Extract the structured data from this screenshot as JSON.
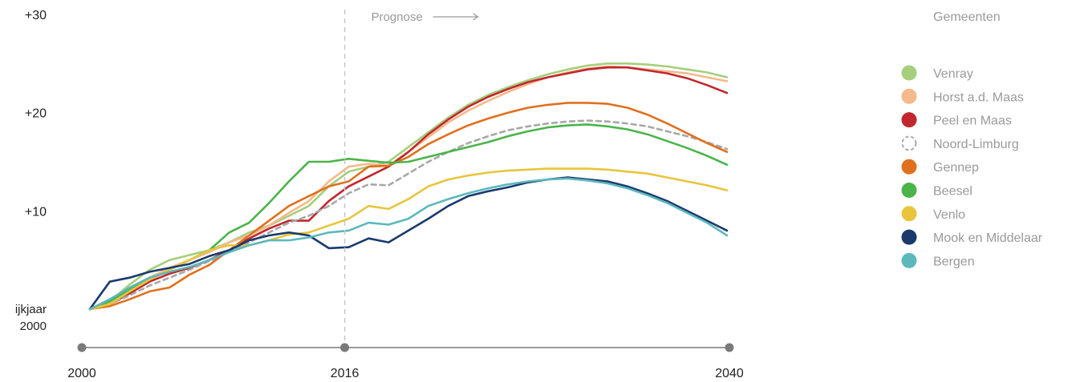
{
  "chart_data": {
    "type": "line",
    "x_start": 2000,
    "x_end": 2040,
    "ylim": [
      0,
      30
    ],
    "y_ticks": [
      {
        "value": 30,
        "label": "+30"
      },
      {
        "value": 20,
        "label": "+20"
      },
      {
        "value": 10,
        "label": "+10"
      }
    ],
    "baseline_label": [
      "ijkjaar",
      "2000"
    ],
    "x_ticks": [
      {
        "value": 2000,
        "label": "2000"
      },
      {
        "value": 2016,
        "label": "2016"
      },
      {
        "value": 2040,
        "label": "2040"
      }
    ],
    "prognosis": {
      "year": 2016,
      "label": "Prognose"
    },
    "legend_title": "Gemeenten",
    "series": [
      {
        "name": "Venray",
        "color": "#a5cf7c",
        "dashed": false,
        "values": [
          0,
          0.8,
          2.5,
          4.0,
          5.0,
          5.5,
          6.0,
          6.8,
          7.8,
          8.5,
          9.5,
          10.5,
          12.5,
          14.0,
          14.5,
          15.0,
          16.5,
          18.0,
          19.5,
          20.8,
          21.8,
          22.6,
          23.3,
          23.9,
          24.4,
          24.8,
          25.0,
          25.0,
          24.9,
          24.7,
          24.4,
          24.1,
          23.6
        ]
      },
      {
        "name": "Horst a.d. Maas",
        "color": "#f5b98a",
        "dashed": false,
        "values": [
          0,
          0.6,
          1.8,
          3.2,
          4.2,
          5.0,
          5.8,
          6.8,
          7.5,
          8.5,
          9.8,
          11.0,
          13.0,
          14.5,
          14.8,
          14.6,
          16.0,
          17.5,
          19.0,
          20.2,
          21.2,
          22.1,
          22.9,
          23.6,
          24.1,
          24.5,
          24.7,
          24.6,
          24.4,
          24.2,
          24.0,
          23.6,
          23.2
        ]
      },
      {
        "name": "Peel en Maas",
        "color": "#c1272d",
        "dashed": false,
        "values": [
          0,
          0.5,
          1.6,
          2.8,
          3.6,
          4.2,
          5.0,
          6.0,
          7.2,
          8.2,
          9.0,
          9.0,
          11.0,
          12.5,
          13.5,
          14.5,
          16.0,
          17.8,
          19.3,
          20.6,
          21.6,
          22.4,
          23.1,
          23.6,
          24.0,
          24.4,
          24.6,
          24.6,
          24.3,
          24.0,
          23.5,
          22.8,
          22.0
        ]
      },
      {
        "name": "Noord-Limburg",
        "color": "#a8a8a8",
        "dashed": true,
        "values": [
          0,
          0.5,
          1.4,
          2.4,
          3.2,
          4.0,
          4.9,
          5.8,
          6.8,
          7.8,
          8.8,
          9.5,
          10.5,
          11.8,
          12.7,
          12.6,
          13.8,
          15.0,
          16.0,
          16.9,
          17.6,
          18.2,
          18.6,
          18.9,
          19.1,
          19.2,
          19.1,
          18.9,
          18.6,
          18.1,
          17.6,
          17.0,
          16.3
        ]
      },
      {
        "name": "Gennep",
        "color": "#e0701e",
        "dashed": false,
        "values": [
          0,
          0.3,
          1.0,
          1.8,
          2.2,
          3.5,
          4.5,
          6.0,
          7.5,
          9.0,
          10.5,
          11.5,
          12.5,
          13.0,
          14.5,
          14.6,
          15.5,
          16.8,
          17.8,
          18.7,
          19.4,
          20.0,
          20.5,
          20.8,
          21.0,
          21.0,
          20.9,
          20.5,
          19.8,
          18.9,
          17.9,
          16.9,
          16.0
        ]
      },
      {
        "name": "Beesel",
        "color": "#4bb44a",
        "dashed": false,
        "values": [
          0,
          0.8,
          2.0,
          3.0,
          4.0,
          5.0,
          6.0,
          7.8,
          8.8,
          10.8,
          13.0,
          15.0,
          15.0,
          15.3,
          15.1,
          14.9,
          15.0,
          15.5,
          16.0,
          16.5,
          17.0,
          17.6,
          18.1,
          18.5,
          18.7,
          18.8,
          18.6,
          18.3,
          17.8,
          17.1,
          16.4,
          15.6,
          14.7
        ]
      },
      {
        "name": "Venlo",
        "color": "#e8c53c",
        "dashed": false,
        "values": [
          0,
          0.5,
          1.8,
          3.0,
          4.0,
          5.0,
          6.0,
          6.5,
          6.5,
          7.0,
          7.6,
          7.8,
          8.5,
          9.2,
          10.5,
          10.2,
          11.2,
          12.5,
          13.2,
          13.6,
          13.9,
          14.1,
          14.2,
          14.3,
          14.3,
          14.3,
          14.2,
          14.0,
          13.8,
          13.4,
          13.0,
          12.6,
          12.1
        ]
      },
      {
        "name": "Mook en Middelaar",
        "color": "#1a3a6e",
        "dashed": false,
        "values": [
          0,
          2.8,
          3.2,
          3.8,
          4.2,
          4.6,
          5.4,
          6.0,
          7.0,
          7.5,
          7.8,
          7.5,
          6.2,
          6.3,
          7.2,
          6.8,
          8.0,
          9.2,
          10.5,
          11.5,
          12.0,
          12.4,
          12.9,
          13.2,
          13.4,
          13.2,
          13.0,
          12.5,
          11.8,
          11.0,
          10.0,
          9.0,
          8.0
        ]
      },
      {
        "name": "Bergen",
        "color": "#5cb8bd",
        "dashed": false,
        "values": [
          0,
          1.0,
          2.2,
          3.2,
          3.8,
          4.3,
          5.0,
          5.8,
          6.5,
          7.0,
          7.0,
          7.3,
          7.8,
          8.0,
          8.8,
          8.6,
          9.2,
          10.5,
          11.2,
          11.8,
          12.3,
          12.7,
          13.0,
          13.2,
          13.3,
          13.1,
          12.8,
          12.3,
          11.6,
          10.8,
          9.8,
          8.8,
          7.5
        ]
      }
    ]
  }
}
